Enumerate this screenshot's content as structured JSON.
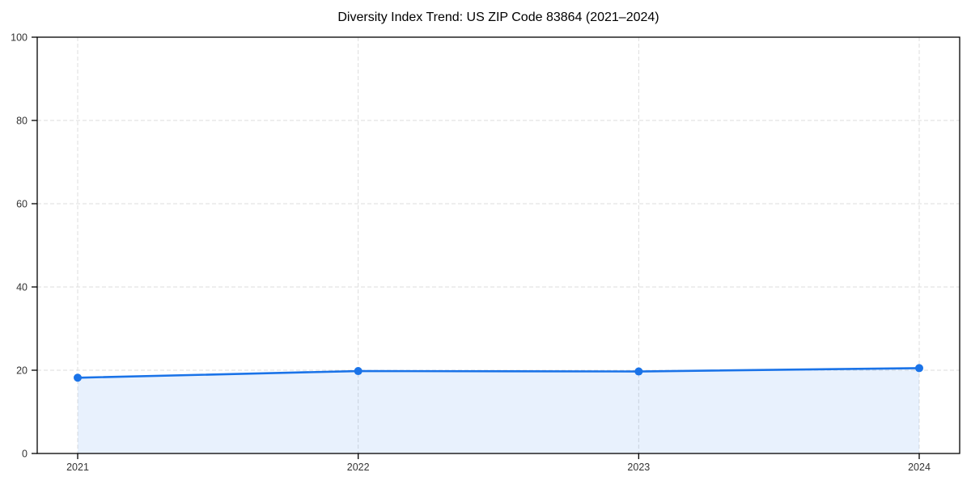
{
  "chart_data": {
    "type": "line",
    "title": "Diversity Index Trend: US ZIP Code 83864 (2021–2024)",
    "categories": [
      "2021",
      "2022",
      "2023",
      "2024"
    ],
    "series": [
      {
        "name": "Diversity Index",
        "values": [
          18.2,
          19.8,
          19.7,
          20.5
        ]
      }
    ],
    "xlabel": "",
    "ylabel": "",
    "ylim": [
      0,
      100
    ],
    "yticks": [
      0,
      20,
      40,
      60,
      80,
      100
    ],
    "area_fill": true,
    "grid": true,
    "grid_style": "dashed",
    "legend_position": "none",
    "colors": {
      "line": "#1a73e8",
      "marker": "#1a73e8",
      "fill": "rgba(26,115,232,0.10)",
      "grid": "#dddddd",
      "axis": "#000000",
      "tick_label": "#333333",
      "title": "#000000",
      "background": "#ffffff"
    }
  }
}
